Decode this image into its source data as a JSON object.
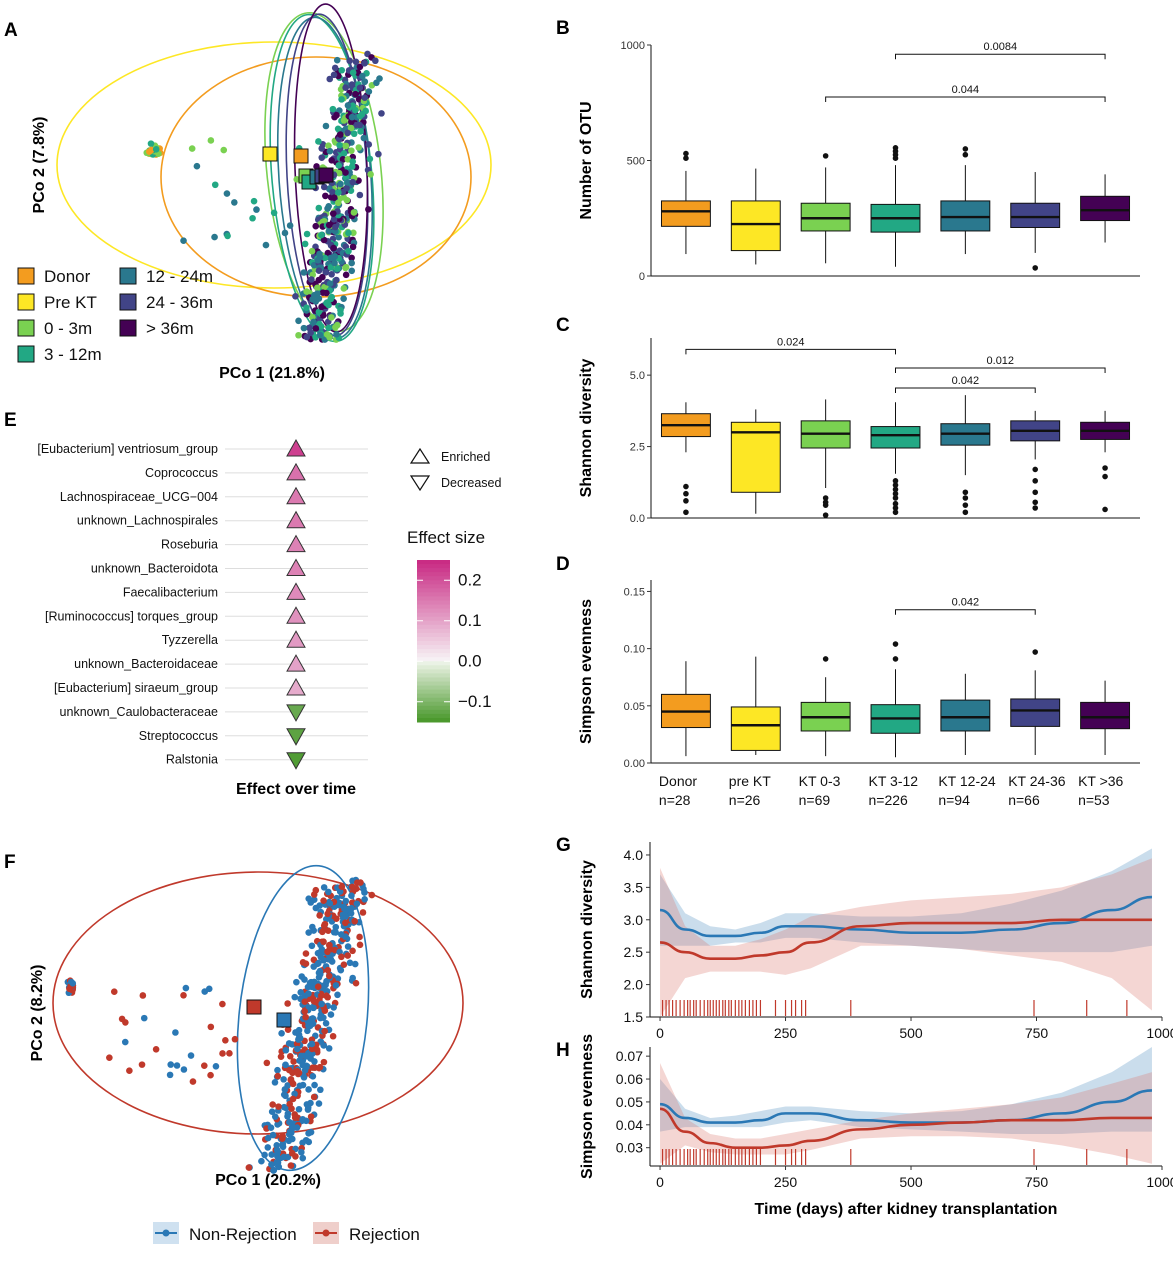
{
  "panels": {
    "A": "A",
    "B": "B",
    "C": "C",
    "D": "D",
    "E": "E",
    "F": "F",
    "G": "G",
    "H": "H"
  },
  "colors": {
    "Donor": "#f39c1f",
    "Pre KT": "#fde725",
    "0 - 3m": "#7ad151",
    "3 - 12m": "#22a884",
    "12 - 24m": "#2a788e",
    "24 - 36m": "#414487",
    "> 36m": "#440154",
    "nonrej": "#2a78b5",
    "rej": "#c0392b"
  },
  "panel_a": {
    "xlabel": "PCo 1 (21.8%)",
    "ylabel": "PCo 2 (7.8%)",
    "legend": [
      "Donor",
      "Pre KT",
      "0 - 3m",
      "3 - 12m",
      "12 - 24m",
      "24 - 36m",
      "> 36m"
    ]
  },
  "panel_e": {
    "xlabel": "Effect over time",
    "legend_enriched": "Enriched",
    "legend_decreased": "Decreased",
    "colorbar_title": "Effect size",
    "colorbar_ticks": [
      "0.2",
      "0.1",
      "0.0",
      "−0.1"
    ]
  },
  "panel_f": {
    "xlabel": "PCo 1 (20.2%)",
    "ylabel": "PCo 2 (8.2%)"
  },
  "legend_gh": [
    "Non-Rejection",
    "Rejection"
  ],
  "chart_data": [
    {
      "panel": "B",
      "type": "box",
      "ylabel": "Number of OTU",
      "ylim": [
        0,
        1000
      ],
      "yticks": [
        0,
        500,
        1000
      ],
      "categories": [
        "Donor",
        "pre KT",
        "KT 0-3",
        "KT 3-12",
        "KT 12-24",
        "KT 24-36",
        "KT >36"
      ],
      "n": [
        "n=28",
        "n=26",
        "n=69",
        "n=226",
        "n=94",
        "n=66",
        "n=53"
      ],
      "boxes": [
        {
          "q1": 215,
          "median": 280,
          "q3": 325,
          "min": 95,
          "max": 455,
          "outliers": [
            510,
            530
          ]
        },
        {
          "q1": 110,
          "median": 225,
          "q3": 325,
          "min": 50,
          "max": 465,
          "outliers": []
        },
        {
          "q1": 195,
          "median": 250,
          "q3": 315,
          "min": 55,
          "max": 470,
          "outliers": [
            520
          ]
        },
        {
          "q1": 190,
          "median": 250,
          "q3": 310,
          "min": 40,
          "max": 480,
          "outliers": [
            510,
            525,
            540,
            555
          ]
        },
        {
          "q1": 195,
          "median": 255,
          "q3": 325,
          "min": 95,
          "max": 480,
          "outliers": [
            525,
            550
          ]
        },
        {
          "q1": 210,
          "median": 255,
          "q3": 315,
          "min": 100,
          "max": 450,
          "outliers": [
            35
          ]
        },
        {
          "q1": 240,
          "median": 285,
          "q3": 345,
          "min": 145,
          "max": 440,
          "outliers": []
        }
      ],
      "comparisons": [
        {
          "from": 3,
          "to": 6,
          "label": "0.0084",
          "y": 960
        },
        {
          "from": 2,
          "to": 6,
          "label": "0.044",
          "y": 775
        }
      ]
    },
    {
      "panel": "C",
      "type": "box",
      "ylabel": "Shannon diversity",
      "ylim": [
        0,
        6.3
      ],
      "yticks": [
        0.0,
        2.5,
        5.0
      ],
      "ytick_labels": [
        "0.0",
        "2.5",
        "5.0"
      ],
      "categories": [
        "Donor",
        "pre KT",
        "KT 0-3",
        "KT 3-12",
        "KT 12-24",
        "KT 24-36",
        "KT >36"
      ],
      "boxes": [
        {
          "q1": 2.85,
          "median": 3.25,
          "q3": 3.65,
          "min": 2.3,
          "max": 4.05,
          "outliers": [
            0.2,
            0.6,
            0.85,
            1.1
          ]
        },
        {
          "q1": 0.9,
          "median": 3.0,
          "q3": 3.35,
          "min": 0.15,
          "max": 3.8,
          "outliers": []
        },
        {
          "q1": 2.45,
          "median": 2.95,
          "q3": 3.4,
          "min": 1.05,
          "max": 4.15,
          "outliers": [
            0.1,
            0.45,
            0.55,
            0.7
          ]
        },
        {
          "q1": 2.45,
          "median": 2.9,
          "q3": 3.2,
          "min": 1.55,
          "max": 4.05,
          "outliers": [
            0.2,
            0.35,
            0.5,
            0.7,
            0.85,
            1.0,
            1.15,
            1.3
          ]
        },
        {
          "q1": 2.55,
          "median": 2.95,
          "q3": 3.3,
          "min": 1.5,
          "max": 4.3,
          "outliers": [
            0.2,
            0.45,
            0.7,
            0.9
          ]
        },
        {
          "q1": 2.7,
          "median": 3.05,
          "q3": 3.4,
          "min": 2.05,
          "max": 3.75,
          "outliers": [
            0.35,
            0.55,
            0.9,
            1.3,
            1.7
          ]
        },
        {
          "q1": 2.75,
          "median": 3.05,
          "q3": 3.35,
          "min": 2.3,
          "max": 3.75,
          "outliers": [
            0.3,
            1.45,
            1.75
          ]
        }
      ],
      "comparisons": [
        {
          "from": 0,
          "to": 3,
          "label": "0.024",
          "y": 5.9
        },
        {
          "from": 3,
          "to": 6,
          "label": "0.012",
          "y": 5.25
        },
        {
          "from": 3,
          "to": 5,
          "label": "0.042",
          "y": 4.55
        }
      ]
    },
    {
      "panel": "D",
      "type": "box",
      "ylabel": "Simpson evenness",
      "ylim": [
        0,
        0.16
      ],
      "yticks": [
        0.0,
        0.05,
        0.1,
        0.15
      ],
      "ytick_labels": [
        "0.00",
        "0.05",
        "0.10",
        "0.15"
      ],
      "categories": [
        "Donor",
        "pre KT",
        "KT 0-3",
        "KT 3-12",
        "KT 12-24",
        "KT 24-36",
        "KT >36"
      ],
      "n": [
        "n=28",
        "n=26",
        "n=69",
        "n=226",
        "n=94",
        "n=66",
        "n=53"
      ],
      "boxes": [
        {
          "q1": 0.031,
          "median": 0.045,
          "q3": 0.06,
          "min": 0.006,
          "max": 0.089,
          "outliers": []
        },
        {
          "q1": 0.011,
          "median": 0.033,
          "q3": 0.049,
          "min": 0.007,
          "max": 0.093,
          "outliers": []
        },
        {
          "q1": 0.028,
          "median": 0.04,
          "q3": 0.053,
          "min": 0.006,
          "max": 0.075,
          "outliers": [
            0.091
          ]
        },
        {
          "q1": 0.026,
          "median": 0.039,
          "q3": 0.051,
          "min": 0.005,
          "max": 0.082,
          "outliers": [
            0.091,
            0.104
          ]
        },
        {
          "q1": 0.028,
          "median": 0.04,
          "q3": 0.055,
          "min": 0.007,
          "max": 0.078,
          "outliers": []
        },
        {
          "q1": 0.032,
          "median": 0.046,
          "q3": 0.056,
          "min": 0.007,
          "max": 0.081,
          "outliers": [
            0.097
          ]
        },
        {
          "q1": 0.03,
          "median": 0.04,
          "q3": 0.053,
          "min": 0.007,
          "max": 0.072,
          "outliers": []
        }
      ],
      "comparisons": [
        {
          "from": 3,
          "to": 5,
          "label": "0.042",
          "y": 0.134
        }
      ]
    },
    {
      "panel": "E",
      "type": "dot",
      "xlabel": "Effect over time",
      "taxa": [
        "[Eubacterium] ventriosum_group",
        "Coprococcus",
        "Lachnospiraceae_UCG−004",
        "unknown_Lachnospirales",
        "Roseburia",
        "unknown_Bacteroidota",
        "Faecalibacterium",
        "[Ruminococcus] torques_group",
        "Tyzzerella",
        "unknown_Bacteroidaceae",
        "[Eubacterium] siraeum_group",
        "unknown_Caulobacteraceae",
        "Streptococcus",
        "Ralstonia"
      ],
      "direction": [
        "Enriched",
        "Enriched",
        "Enriched",
        "Enriched",
        "Enriched",
        "Enriched",
        "Enriched",
        "Enriched",
        "Enriched",
        "Enriched",
        "Enriched",
        "Decreased",
        "Decreased",
        "Decreased"
      ],
      "effect_size": [
        0.22,
        0.16,
        0.15,
        0.15,
        0.14,
        0.14,
        0.13,
        0.12,
        0.11,
        0.1,
        0.09,
        -0.12,
        -0.13,
        -0.14
      ],
      "colorbar_range": [
        -0.15,
        0.25
      ]
    },
    {
      "panel": "G",
      "type": "line",
      "ylabel": "Shannon diversity",
      "xlim": [
        -20,
        1000
      ],
      "ylim": [
        1.5,
        4.2
      ],
      "yticks": [
        1.5,
        2.0,
        2.5,
        3.0,
        3.5,
        4.0
      ],
      "ytick_labels": [
        "1.5",
        "2.0",
        "2.5",
        "3.0",
        "3.5",
        "4.0"
      ],
      "xticks": [
        0,
        250,
        500,
        750,
        1000
      ],
      "series": [
        {
          "name": "Non-Rejection",
          "x": [
            0,
            50,
            100,
            150,
            200,
            250,
            300,
            400,
            500,
            600,
            700,
            800,
            900,
            980
          ],
          "y": [
            3.15,
            2.85,
            2.75,
            2.75,
            2.8,
            2.9,
            2.9,
            2.85,
            2.8,
            2.8,
            2.85,
            2.95,
            3.15,
            3.35
          ],
          "lo": [
            2.6,
            2.6,
            2.6,
            2.65,
            2.65,
            2.72,
            2.72,
            2.65,
            2.6,
            2.55,
            2.5,
            2.5,
            2.5,
            2.6
          ],
          "hi": [
            3.7,
            3.1,
            2.9,
            2.85,
            2.95,
            3.1,
            3.1,
            3.05,
            3.05,
            3.1,
            3.25,
            3.45,
            3.75,
            4.1
          ]
        },
        {
          "name": "Rejection",
          "x": [
            0,
            50,
            100,
            150,
            200,
            250,
            300,
            400,
            500,
            600,
            700,
            800,
            900,
            980
          ],
          "y": [
            2.65,
            2.5,
            2.4,
            2.4,
            2.45,
            2.5,
            2.65,
            2.9,
            2.95,
            2.95,
            2.95,
            3.0,
            3.0,
            3.0
          ],
          "lo": [
            1.5,
            2.1,
            2.2,
            2.2,
            2.2,
            2.15,
            2.25,
            2.6,
            2.6,
            2.55,
            2.45,
            2.35,
            2.1,
            1.6
          ],
          "hi": [
            3.8,
            2.9,
            2.6,
            2.6,
            2.7,
            2.85,
            3.05,
            3.2,
            3.3,
            3.35,
            3.4,
            3.5,
            3.7,
            3.95
          ]
        }
      ],
      "rug": [
        5,
        12,
        18,
        25,
        32,
        40,
        48,
        55,
        60,
        67,
        72,
        80,
        88,
        95,
        100,
        106,
        112,
        118,
        125,
        130,
        137,
        142,
        150,
        157,
        163,
        170,
        178,
        185,
        192,
        200,
        230,
        250,
        262,
        270,
        282,
        290,
        380,
        745,
        850,
        930
      ]
    },
    {
      "panel": "H",
      "type": "line",
      "ylabel": "Simpson evenness",
      "xlabel": "Time (days) after kidney transplantation",
      "xlim": [
        -20,
        1000
      ],
      "ylim": [
        0.022,
        0.074
      ],
      "yticks": [
        0.03,
        0.04,
        0.05,
        0.06,
        0.07
      ],
      "ytick_labels": [
        "0.03",
        "0.04",
        "0.05",
        "0.06",
        "0.07"
      ],
      "xticks": [
        0,
        250,
        500,
        750,
        1000
      ],
      "series": [
        {
          "name": "Non-Rejection",
          "x": [
            0,
            50,
            100,
            150,
            200,
            250,
            300,
            400,
            500,
            600,
            700,
            800,
            900,
            980
          ],
          "y": [
            0.049,
            0.043,
            0.041,
            0.041,
            0.042,
            0.045,
            0.045,
            0.042,
            0.041,
            0.041,
            0.042,
            0.045,
            0.05,
            0.055
          ],
          "lo": [
            0.037,
            0.039,
            0.039,
            0.039,
            0.039,
            0.041,
            0.042,
            0.039,
            0.038,
            0.037,
            0.036,
            0.036,
            0.037,
            0.037
          ],
          "hi": [
            0.06,
            0.047,
            0.043,
            0.044,
            0.046,
            0.048,
            0.048,
            0.046,
            0.045,
            0.046,
            0.049,
            0.054,
            0.063,
            0.074
          ]
        },
        {
          "name": "Rejection",
          "x": [
            0,
            50,
            100,
            150,
            200,
            250,
            300,
            400,
            500,
            600,
            700,
            800,
            900,
            980
          ],
          "y": [
            0.047,
            0.037,
            0.032,
            0.03,
            0.03,
            0.031,
            0.033,
            0.038,
            0.04,
            0.041,
            0.042,
            0.042,
            0.043,
            0.043
          ],
          "lo": [
            0.023,
            0.031,
            0.028,
            0.027,
            0.027,
            0.027,
            0.029,
            0.034,
            0.035,
            0.035,
            0.034,
            0.031,
            0.027,
            0.023
          ],
          "hi": [
            0.067,
            0.043,
            0.036,
            0.034,
            0.034,
            0.036,
            0.038,
            0.042,
            0.045,
            0.047,
            0.049,
            0.052,
            0.058,
            0.063
          ]
        }
      ],
      "rug": [
        5,
        12,
        18,
        25,
        32,
        40,
        48,
        55,
        60,
        67,
        72,
        80,
        88,
        95,
        100,
        106,
        112,
        118,
        125,
        130,
        137,
        142,
        150,
        157,
        163,
        170,
        178,
        185,
        192,
        200,
        230,
        250,
        262,
        270,
        282,
        290,
        380,
        745,
        850,
        930
      ]
    }
  ]
}
